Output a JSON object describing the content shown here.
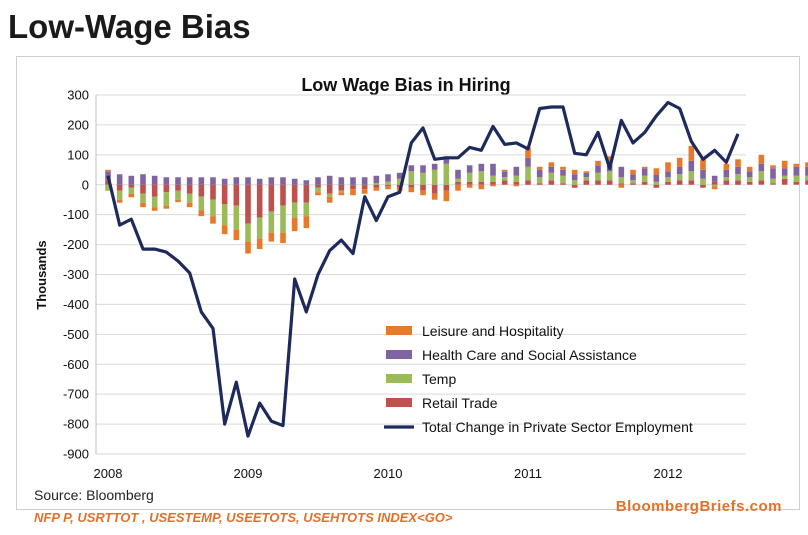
{
  "page_title": "Low-Wage Bias",
  "source": "Source: Bloomberg",
  "ticker": "NFP P, USRTTOT , USESTEMP, USEETOTS, USEHTOTS INDEX<GO>",
  "brand": "BloombergBriefs.com",
  "colors": {
    "leisure": "#e8782a",
    "health": "#8064a2",
    "temp": "#9bbb59",
    "retail": "#c0504d",
    "total": "#1f2a5c",
    "grid": "#d9d9d9"
  },
  "chart_data": {
    "type": "bar",
    "title": "Low Wage Bias in Hiring",
    "ylabel": "Thousands",
    "xlabel": "",
    "ylim": [
      -900,
      300
    ],
    "y_ticks": [
      300,
      200,
      100,
      0,
      -100,
      -200,
      -300,
      -400,
      -500,
      -600,
      -700,
      -800,
      -900
    ],
    "x_ticks": [
      "2008",
      "2009",
      "2010",
      "2011",
      "2012"
    ],
    "x_start": "2008-01",
    "legend_position": "bottom-right",
    "grid": true,
    "series": [
      {
        "name": "Leisure and Hospitality",
        "kind": "stacked-bar",
        "values": [
          5,
          -10,
          -12,
          -15,
          -12,
          -10,
          -8,
          -15,
          -20,
          -25,
          -30,
          -35,
          -40,
          -35,
          -30,
          -35,
          -45,
          -40,
          -10,
          -20,
          -10,
          -20,
          -15,
          -10,
          -10,
          -10,
          -15,
          -15,
          -20,
          -35,
          -20,
          -10,
          -15,
          -5,
          5,
          -5,
          35,
          10,
          15,
          10,
          15,
          5,
          15,
          30,
          -10,
          15,
          5,
          20,
          30,
          30,
          50,
          35,
          -10,
          20,
          25,
          15,
          30,
          10,
          25,
          10,
          15,
          35,
          20,
          40,
          30,
          15,
          20,
          15,
          5,
          10,
          25
        ]
      },
      {
        "name": "Health Care and Social Assistance",
        "kind": "stacked-bar",
        "values": [
          30,
          35,
          30,
          35,
          30,
          25,
          25,
          25,
          25,
          25,
          20,
          25,
          25,
          20,
          25,
          25,
          20,
          15,
          25,
          30,
          25,
          25,
          25,
          25,
          25,
          20,
          20,
          25,
          20,
          25,
          30,
          25,
          25,
          40,
          20,
          30,
          30,
          25,
          20,
          20,
          20,
          15,
          25,
          20,
          35,
          20,
          25,
          25,
          20,
          25,
          35,
          30,
          20,
          25,
          25,
          20,
          25,
          35,
          25,
          30,
          30,
          30,
          35,
          30,
          45,
          25,
          20,
          25,
          15,
          20,
          25
        ]
      },
      {
        "name": "Temp",
        "kind": "stacked-bar",
        "values": [
          -20,
          -30,
          -20,
          -30,
          -35,
          -45,
          -30,
          -30,
          -45,
          -55,
          -70,
          -80,
          -60,
          -70,
          -70,
          -90,
          -50,
          -45,
          -15,
          -10,
          -5,
          0,
          0,
          5,
          10,
          20,
          45,
          40,
          50,
          70,
          10,
          30,
          35,
          20,
          10,
          20,
          45,
          20,
          25,
          25,
          15,
          10,
          25,
          30,
          20,
          10,
          20,
          10,
          15,
          20,
          30,
          20,
          -5,
          10,
          20,
          15,
          30,
          15,
          10,
          20,
          15,
          30,
          15,
          50,
          -5,
          -15,
          10,
          15,
          5,
          5,
          10
        ]
      },
      {
        "name": "Retail Trade",
        "kind": "stacked-bar",
        "values": [
          15,
          -20,
          -10,
          -30,
          -40,
          -25,
          -20,
          -30,
          -40,
          -50,
          -65,
          -70,
          -130,
          -110,
          -90,
          -70,
          -60,
          -60,
          -10,
          -30,
          -20,
          -15,
          -15,
          -10,
          -5,
          -10,
          -10,
          -20,
          -30,
          -20,
          10,
          10,
          10,
          10,
          15,
          10,
          15,
          5,
          15,
          5,
          -10,
          15,
          15,
          15,
          5,
          5,
          10,
          -10,
          10,
          15,
          15,
          -10,
          10,
          15,
          15,
          10,
          15,
          5,
          20,
          10,
          15,
          20,
          10,
          20,
          10,
          10,
          10,
          10,
          5,
          5,
          10
        ]
      },
      {
        "name": "Total Change in Private Sector Employment",
        "kind": "line",
        "values": [
          30,
          -135,
          -115,
          -215,
          -215,
          -225,
          -255,
          -295,
          -425,
          -480,
          -800,
          -660,
          -840,
          -730,
          -790,
          -805,
          -315,
          -425,
          -300,
          -220,
          -185,
          -230,
          -40,
          -120,
          -40,
          -25,
          140,
          190,
          85,
          90,
          90,
          125,
          115,
          195,
          135,
          140,
          120,
          255,
          260,
          260,
          105,
          100,
          175,
          55,
          215,
          140,
          175,
          230,
          275,
          255,
          145,
          85,
          115,
          75,
          170
        ]
      }
    ]
  }
}
